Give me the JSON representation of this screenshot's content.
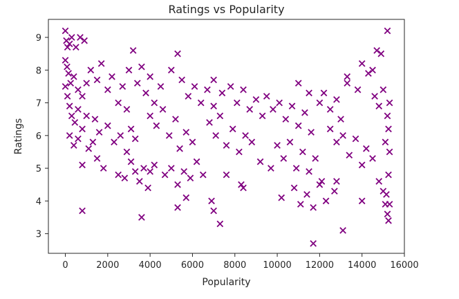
{
  "chart_data": {
    "type": "scatter",
    "title": "Ratings vs Popularity",
    "xlabel": "Popularity",
    "ylabel": "Ratings",
    "xlim": [
      -800,
      16000
    ],
    "ylim": [
      2.4,
      9.55
    ],
    "xticks": [
      0,
      2000,
      4000,
      6000,
      8000,
      10000,
      12000,
      14000,
      16000
    ],
    "xtick_labels": [
      "0",
      "2000",
      "4000",
      "6000",
      "8000",
      "10000",
      "12000",
      "14000",
      "16000"
    ],
    "yticks": [
      3,
      4,
      5,
      6,
      7,
      8,
      9
    ],
    "ytick_labels": [
      "3",
      "4",
      "5",
      "6",
      "7",
      "8",
      "9"
    ],
    "grid": false,
    "marker": "x",
    "color": "#800080",
    "series": [
      {
        "points": [
          [
            0,
            9.2
          ],
          [
            50,
            8.9
          ],
          [
            100,
            8.7
          ],
          [
            200,
            8.8
          ],
          [
            300,
            9.0
          ],
          [
            500,
            8.7
          ],
          [
            700,
            9.0
          ],
          [
            900,
            8.9
          ],
          [
            0,
            8.3
          ],
          [
            80,
            8.1
          ],
          [
            150,
            7.9
          ],
          [
            250,
            7.6
          ],
          [
            400,
            7.8
          ],
          [
            600,
            7.4
          ],
          [
            800,
            7.2
          ],
          [
            1000,
            7.6
          ],
          [
            0,
            7.5
          ],
          [
            100,
            7.2
          ],
          [
            200,
            6.9
          ],
          [
            300,
            6.6
          ],
          [
            450,
            6.4
          ],
          [
            600,
            6.8
          ],
          [
            800,
            6.2
          ],
          [
            1000,
            6.6
          ],
          [
            200,
            6.0
          ],
          [
            400,
            5.7
          ],
          [
            600,
            5.9
          ],
          [
            800,
            5.1
          ],
          [
            1100,
            5.6
          ],
          [
            1300,
            5.8
          ],
          [
            1500,
            5.3
          ],
          [
            1800,
            5.0
          ],
          [
            1200,
            8.0
          ],
          [
            1500,
            7.7
          ],
          [
            1700,
            8.2
          ],
          [
            2000,
            7.4
          ],
          [
            2200,
            7.8
          ],
          [
            2500,
            7.0
          ],
          [
            2700,
            7.5
          ],
          [
            2900,
            6.8
          ],
          [
            1400,
            6.5
          ],
          [
            1600,
            6.1
          ],
          [
            2000,
            6.3
          ],
          [
            2300,
            5.8
          ],
          [
            2600,
            6.0
          ],
          [
            2900,
            5.5
          ],
          [
            3100,
            6.2
          ],
          [
            3300,
            5.9
          ],
          [
            2500,
            4.8
          ],
          [
            2800,
            4.7
          ],
          [
            3100,
            5.2
          ],
          [
            3300,
            4.9
          ],
          [
            3500,
            4.6
          ],
          [
            3700,
            5.0
          ],
          [
            3900,
            4.4
          ],
          [
            4000,
            4.9
          ],
          [
            3200,
            8.6
          ],
          [
            3000,
            8.0
          ],
          [
            3400,
            7.6
          ],
          [
            3600,
            8.1
          ],
          [
            3800,
            7.3
          ],
          [
            4000,
            7.8
          ],
          [
            4200,
            7.0
          ],
          [
            4500,
            7.5
          ],
          [
            4000,
            6.6
          ],
          [
            4300,
            6.3
          ],
          [
            4600,
            6.8
          ],
          [
            4900,
            6.0
          ],
          [
            5200,
            6.5
          ],
          [
            5400,
            5.6
          ],
          [
            5700,
            6.1
          ],
          [
            6000,
            5.8
          ],
          [
            4200,
            5.1
          ],
          [
            4700,
            4.8
          ],
          [
            5000,
            5.0
          ],
          [
            5300,
            4.5
          ],
          [
            5600,
            4.9
          ],
          [
            5900,
            4.7
          ],
          [
            6200,
            5.2
          ],
          [
            6500,
            4.8
          ],
          [
            5000,
            8.0
          ],
          [
            5300,
            8.5
          ],
          [
            5500,
            7.7
          ],
          [
            5800,
            7.2
          ],
          [
            6100,
            7.5
          ],
          [
            6400,
            7.0
          ],
          [
            6700,
            7.4
          ],
          [
            7000,
            6.9
          ],
          [
            6800,
            6.4
          ],
          [
            7100,
            6.0
          ],
          [
            7300,
            6.6
          ],
          [
            7600,
            5.7
          ],
          [
            7900,
            6.2
          ],
          [
            8200,
            5.5
          ],
          [
            8500,
            6.0
          ],
          [
            8800,
            5.8
          ],
          [
            7000,
            7.7
          ],
          [
            7400,
            7.3
          ],
          [
            7800,
            7.5
          ],
          [
            8100,
            7.0
          ],
          [
            8400,
            7.4
          ],
          [
            8700,
            6.8
          ],
          [
            9000,
            7.1
          ],
          [
            9300,
            6.6
          ],
          [
            6900,
            4.0
          ],
          [
            7000,
            3.7
          ],
          [
            7300,
            3.3
          ],
          [
            7600,
            4.8
          ],
          [
            8300,
            4.5
          ],
          [
            8400,
            4.4
          ],
          [
            9200,
            5.2
          ],
          [
            9700,
            5.0
          ],
          [
            9500,
            7.2
          ],
          [
            9800,
            6.8
          ],
          [
            10100,
            7.0
          ],
          [
            10400,
            6.5
          ],
          [
            10700,
            6.9
          ],
          [
            11000,
            6.3
          ],
          [
            11300,
            6.7
          ],
          [
            11600,
            6.1
          ],
          [
            10000,
            5.7
          ],
          [
            10300,
            5.3
          ],
          [
            10600,
            5.8
          ],
          [
            10900,
            5.0
          ],
          [
            11200,
            5.5
          ],
          [
            11500,
            4.9
          ],
          [
            11800,
            5.3
          ],
          [
            12100,
            4.6
          ],
          [
            10200,
            4.1
          ],
          [
            10800,
            4.4
          ],
          [
            11100,
            3.9
          ],
          [
            11400,
            4.2
          ],
          [
            11700,
            3.8
          ],
          [
            12000,
            4.5
          ],
          [
            12300,
            4.0
          ],
          [
            12700,
            4.3
          ],
          [
            11000,
            7.6
          ],
          [
            11500,
            7.3
          ],
          [
            12000,
            7.0
          ],
          [
            12200,
            7.3
          ],
          [
            12500,
            6.8
          ],
          [
            12800,
            7.1
          ],
          [
            13000,
            6.5
          ],
          [
            13300,
            7.6
          ],
          [
            12500,
            6.2
          ],
          [
            12800,
            5.8
          ],
          [
            13100,
            6.0
          ],
          [
            13400,
            5.4
          ],
          [
            13700,
            5.9
          ],
          [
            14000,
            5.1
          ],
          [
            14200,
            5.6
          ],
          [
            14500,
            5.3
          ],
          [
            13300,
            7.8
          ],
          [
            13800,
            7.4
          ],
          [
            14000,
            8.2
          ],
          [
            14300,
            7.9
          ],
          [
            14500,
            8.0
          ],
          [
            14700,
            8.6
          ],
          [
            14900,
            8.5
          ],
          [
            15200,
            9.2
          ],
          [
            14600,
            7.2
          ],
          [
            14800,
            6.9
          ],
          [
            15000,
            7.4
          ],
          [
            15200,
            6.6
          ],
          [
            15300,
            7.0
          ],
          [
            15100,
            5.8
          ],
          [
            15250,
            6.2
          ],
          [
            15300,
            5.5
          ],
          [
            14800,
            4.6
          ],
          [
            15000,
            4.3
          ],
          [
            15100,
            3.9
          ],
          [
            15200,
            3.6
          ],
          [
            15250,
            3.4
          ],
          [
            15300,
            3.9
          ],
          [
            15150,
            4.2
          ],
          [
            15250,
            4.8
          ],
          [
            800,
            3.7
          ],
          [
            3600,
            3.5
          ],
          [
            5300,
            3.8
          ],
          [
            5700,
            4.1
          ],
          [
            13100,
            3.1
          ],
          [
            11700,
            2.7
          ],
          [
            14000,
            4.0
          ],
          [
            12800,
            4.6
          ]
        ]
      }
    ]
  }
}
